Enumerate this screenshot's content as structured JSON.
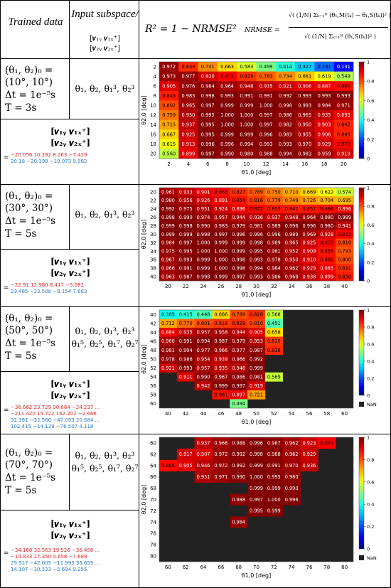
{
  "header": {
    "trained_data": "Trained data",
    "input_subspace": "Input subspace/",
    "input_subspace_vec_top": "[𝒗₁ᵧ 𝒗₁ₓ⁺]",
    "input_subspace_vec_bot": "[𝒗₂ᵧ 𝒗₂ₓ⁺]",
    "r2_formula": "R² = 1 − NRMSE²",
    "nrmse_lhs": "NRMSE =",
    "nrmse_num": "√( (1/N) Σₖ₌₁ᴺ (θ₁,M(tₖ) − θ₁,S(tₖ))² )",
    "nrmse_den": "√( (1/N) Σₖ₌₁ᴺ (θ₁,S(tₖ))² )"
  },
  "rows": [
    {
      "ic_line1": "(θ₁, θ₂)₀ =",
      "ic_line2": "(10°, 10°)",
      "ic_line3": "Δt = 1e⁻⁵s",
      "ic_line4": "T = 3s",
      "subspace_line1": "θ₁, θ₂, θ₁³, θ₂³",
      "subspace_line2": "",
      "vec_top": "[𝒗₁ᵧ 𝒗₁ₓ⁺]",
      "vec_bot": "[𝒗₂ᵧ 𝒗₂ₓ⁺]",
      "mat_red": [
        "−20.056  10.292   8.263  −7.429"
      ],
      "mat_blue": [
        "20.18  −20.198  −10.073   9.982"
      ]
    },
    {
      "ic_line1": "(θ₁, θ₂)₀ =",
      "ic_line2": "(30°, 30°)",
      "ic_line3": "Δt = 1e⁻⁵s",
      "ic_line4": "T = 5s",
      "subspace_line1": "θ₁, θ₂, θ₁³, θ₂³",
      "subspace_line2": "",
      "vec_top": "[𝒗₁ᵧ 𝒗₁ₓ⁺]",
      "vec_bot": "[𝒗₂ᵧ 𝒗₂ₓ⁺]",
      "mat_red": [
        "−22.91  12.980   8.417  −5.582"
      ],
      "mat_blue": [
        "23.485  −23.508  −8.154   7.683"
      ]
    },
    {
      "ic_line1": "(θ₁, θ₂)₀ =",
      "ic_line2": "(50°, 50°)",
      "ic_line3": "Δt = 1e⁻⁵s",
      "ic_line4": "T = 5s",
      "subspace_line1": "θ₁, θ₂, θ₁³, θ₂³",
      "subspace_line2": "θ₁⁵, θ₂⁵, θ₁⁷, θ₂⁷",
      "vec_top": "[𝒗₁ᵧ 𝒗₁ₓ⁺]",
      "vec_bot": "[𝒗₂ᵧ 𝒗₂ₓ⁺]",
      "mat_red": [
        "−36.662  23.729  90.664  −24.237  ...",
        "−211.420  15.722  162.202  −2.666"
      ],
      "mat_blue": [
        "32.391  −32.566  −47.093  20.584  ...",
        "102.415  −14.139  −76.507  4.118"
      ]
    },
    {
      "ic_line1": "(θ₁, θ₂)₀ =",
      "ic_line2": "(70°, 70°)",
      "ic_line3": "Δt = 1e⁻⁵s",
      "ic_line4": "T = 5s",
      "subspace_line1": "θ₁, θ₂, θ₁³, θ₂³",
      "subspace_line2": "θ₁⁵, θ₂⁵, θ₁⁷, θ₂⁷",
      "vec_top": "[𝒗₁ᵧ 𝒗₁ₓ⁺]",
      "vec_bot": "[𝒗₂ᵧ 𝒗₂ₓ⁺]",
      "mat_red": [
        "−34.168  32.563  19.526  −35.456  ...",
        "−14.833  27.350  4.658  −7.689"
      ],
      "mat_blue": [
        "29.917  −42.005  −11.993  36.659  ...",
        "14.107  −30.533  −5.694  9.255"
      ]
    }
  ],
  "colorbar_ticks": [
    "0",
    "0.2",
    "0.4",
    "0.6",
    "0.8",
    "1"
  ],
  "nan_label": "NaN",
  "chart_data": [
    {
      "type": "heatmap",
      "xlabel": "θ1,0 [deg]",
      "ylabel": "θ2,0 [deg]",
      "x": [
        2,
        4,
        6,
        8,
        10,
        12,
        14,
        16,
        18,
        20
      ],
      "y": [
        2,
        4,
        6,
        8,
        10,
        12,
        14,
        16,
        18,
        20
      ],
      "show_colorbar_nan": false,
      "values": [
        [
          0.972,
          0.833,
          0.741,
          0.663,
          0.583,
          0.499,
          0.414,
          0.327,
          0.231,
          0.131
        ],
        [
          0.973,
          0.977,
          0.92,
          0.872,
          0.829,
          0.783,
          0.734,
          0.681,
          0.619,
          0.549
        ],
        [
          0.905,
          0.976,
          0.984,
          0.964,
          0.948,
          0.935,
          0.921,
          0.906,
          0.887,
          0.864
        ],
        [
          0.849,
          0.983,
          0.998,
          0.993,
          0.991,
          0.991,
          0.992,
          0.993,
          0.993,
          0.993
        ],
        [
          0.802,
          0.965,
          0.997,
          0.999,
          0.999,
          1.0,
          0.998,
          0.993,
          0.984,
          0.971
        ],
        [
          0.759,
          0.95,
          0.995,
          1.0,
          1.0,
          0.997,
          0.986,
          0.965,
          0.935,
          0.893
        ],
        [
          0.715,
          0.937,
          0.995,
          1.0,
          1.0,
          0.997,
          0.982,
          0.95,
          0.903,
          0.842
        ],
        [
          0.667,
          0.925,
          0.995,
          0.999,
          0.999,
          0.996,
          0.983,
          0.955,
          0.906,
          0.843
        ],
        [
          0.615,
          0.913,
          0.996,
          0.996,
          0.994,
          0.993,
          0.993,
          0.97,
          0.929,
          0.87
        ],
        [
          0.56,
          0.899,
          0.997,
          0.99,
          0.98,
          0.988,
          0.994,
          0.983,
          0.959,
          0.919
        ]
      ]
    },
    {
      "type": "heatmap",
      "xlabel": "θ1,0 [deg]",
      "ylabel": "θ2,0 [deg]",
      "x": [
        20,
        22,
        24,
        26,
        28,
        30,
        32,
        34,
        36,
        38,
        40
      ],
      "y": [
        20,
        22,
        24,
        26,
        28,
        30,
        32,
        34,
        36,
        38,
        40
      ],
      "show_colorbar_nan": false,
      "values": [
        [
          0.961,
          0.933,
          0.901,
          0.865,
          0.827,
          0.789,
          0.75,
          0.71,
          0.669,
          0.622,
          0.574
        ],
        [
          0.98,
          0.956,
          0.926,
          0.891,
          0.854,
          0.816,
          0.779,
          0.749,
          0.726,
          0.704,
          0.695
        ],
        [
          0.992,
          0.975,
          0.951,
          0.924,
          0.896,
          0.872,
          0.853,
          0.847,
          0.852,
          0.866,
          0.896
        ],
        [
          0.998,
          0.99,
          0.974,
          0.957,
          0.944,
          0.936,
          0.937,
          0.948,
          0.964,
          0.98,
          0.989
        ],
        [
          0.999,
          0.998,
          0.99,
          0.983,
          0.979,
          0.981,
          0.989,
          0.996,
          0.996,
          0.98,
          0.941
        ],
        [
          0.999,
          0.999,
          0.998,
          0.997,
          0.996,
          0.996,
          0.996,
          0.989,
          0.969,
          0.928,
          0.872
        ],
        [
          0.984,
          0.997,
          1.0,
          0.999,
          0.999,
          0.998,
          0.989,
          0.965,
          0.925,
          0.872,
          0.81
        ],
        [
          0.975,
          0.995,
          1.0,
          1.0,
          0.999,
          0.995,
          0.981,
          0.952,
          0.909,
          0.856,
          0.793
        ],
        [
          0.967,
          0.993,
          0.999,
          1.0,
          0.998,
          0.993,
          0.978,
          0.95,
          0.91,
          0.86,
          0.8
        ],
        [
          0.966,
          0.991,
          0.999,
          1.0,
          0.998,
          0.994,
          0.984,
          0.962,
          0.929,
          0.885,
          0.831
        ],
        [
          0.963,
          0.987,
          0.998,
          0.999,
          0.997,
          0.993,
          0.986,
          0.968,
          0.938,
          0.899,
          0.85
        ]
      ]
    },
    {
      "type": "heatmap",
      "xlabel": "θ1,0 [deg]",
      "ylabel": "θ2,0 [deg]",
      "x": [
        40,
        42,
        44,
        46,
        48,
        50,
        52,
        54,
        56,
        58,
        60
      ],
      "y": [
        40,
        42,
        44,
        46,
        48,
        50,
        52,
        54,
        56,
        58,
        60
      ],
      "show_colorbar_nan": true,
      "values": [
        [
          0.385,
          0.415,
          0.448,
          0.666,
          0.799,
          0.828,
          0.568,
          null,
          null,
          null,
          null
        ],
        [
          0.712,
          0.77,
          0.801,
          0.818,
          0.829,
          0.81,
          0.451,
          null,
          null,
          null,
          null
        ],
        [
          0.884,
          0.935,
          0.957,
          0.958,
          0.944,
          0.905,
          0.658,
          null,
          null,
          null,
          null
        ],
        [
          0.96,
          0.991,
          0.994,
          0.987,
          0.979,
          0.953,
          0.82,
          null,
          null,
          null,
          null
        ],
        [
          0.981,
          0.994,
          0.977,
          0.966,
          0.977,
          0.987,
          0.836,
          null,
          null,
          null,
          null
        ],
        [
          0.978,
          0.986,
          0.954,
          0.939,
          0.966,
          0.992,
          null,
          null,
          null,
          null,
          null
        ],
        [
          0.921,
          0.993,
          0.957,
          0.935,
          0.946,
          0.999,
          null,
          null,
          null,
          null,
          null
        ],
        [
          null,
          0.911,
          0.99,
          0.967,
          0.986,
          0.981,
          0.569,
          null,
          null,
          null,
          null
        ],
        [
          null,
          null,
          0.942,
          0.999,
          0.997,
          0.919,
          null,
          null,
          null,
          null,
          null
        ],
        [
          null,
          null,
          null,
          0.861,
          0.897,
          0.721,
          null,
          null,
          null,
          null,
          null
        ],
        [
          null,
          null,
          null,
          null,
          0.494,
          null,
          null,
          null,
          null,
          null,
          null
        ]
      ]
    },
    {
      "type": "heatmap",
      "xlabel": "θ1,0 [deg]",
      "ylabel": "θ2,0 [deg]",
      "x": [
        60,
        62,
        64,
        66,
        68,
        70,
        72,
        74,
        76,
        78,
        80
      ],
      "y": [
        60,
        62,
        64,
        66,
        68,
        70,
        72,
        74,
        76,
        78,
        80
      ],
      "show_colorbar_nan": true,
      "values": [
        [
          null,
          null,
          0.937,
          0.966,
          0.988,
          0.996,
          0.987,
          0.962,
          0.923,
          0.879,
          null
        ],
        [
          null,
          0.917,
          0.907,
          0.972,
          0.992,
          0.998,
          0.988,
          0.962,
          0.929,
          null,
          null
        ],
        [
          0.866,
          0.905,
          0.946,
          0.972,
          0.992,
          0.999,
          0.991,
          0.97,
          0.936,
          null,
          null
        ],
        [
          null,
          null,
          0.951,
          0.971,
          0.99,
          1.0,
          0.995,
          0.98,
          null,
          null,
          null
        ],
        [
          null,
          null,
          null,
          null,
          null,
          0.999,
          0.999,
          0.99,
          null,
          null,
          null
        ],
        [
          null,
          null,
          null,
          null,
          0.988,
          0.997,
          1.0,
          0.996,
          null,
          null,
          null
        ],
        [
          null,
          null,
          null,
          null,
          null,
          0.995,
          0.999,
          null,
          null,
          null,
          null
        ],
        [
          null,
          null,
          null,
          null,
          0.984,
          null,
          null,
          null,
          null,
          null,
          null
        ],
        [
          null,
          null,
          null,
          null,
          null,
          null,
          null,
          null,
          null,
          null,
          null
        ],
        [
          null,
          null,
          null,
          null,
          null,
          null,
          null,
          null,
          null,
          null,
          null
        ],
        [
          null,
          null,
          null,
          null,
          null,
          null,
          null,
          null,
          null,
          null,
          null
        ]
      ]
    }
  ]
}
